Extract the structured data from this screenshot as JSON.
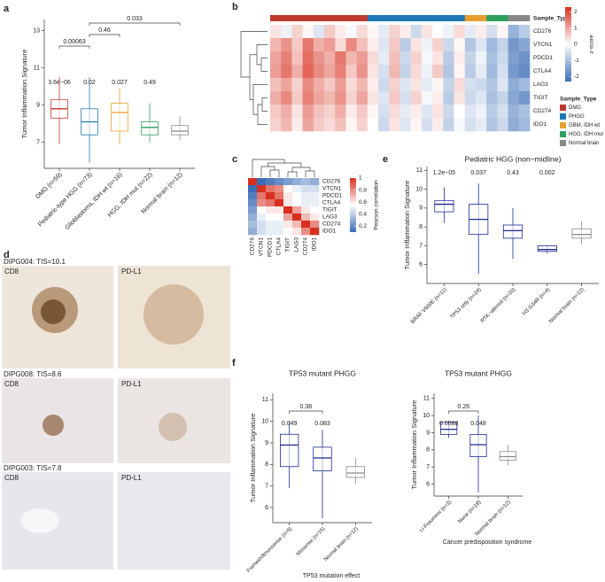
{
  "panel_labels": [
    "a",
    "b",
    "c",
    "d",
    "e",
    "f"
  ],
  "images": [
    {
      "title": "DIPG004: TIS=10.1",
      "stains": [
        "CD8",
        "PD-L1"
      ]
    },
    {
      "title": "DIPG008: TIS=8.6",
      "stains": [
        "CD8",
        "PD-L1"
      ]
    },
    {
      "title": "DIPG003: TIS=7.8",
      "stains": [
        "CD8",
        "PD-L1"
      ]
    }
  ],
  "chart_data": [
    {
      "type": "box",
      "y_label": "Tumor Inflammation Signature",
      "categories": [
        "DMG (n=59)",
        "Pediatric-type HGG (n=73)",
        "Glioblastoma, IDH wt (n=16)",
        "HGG, IDH mut (n=22)",
        "Normal brain (n=12)"
      ],
      "colors": [
        "#c0392b",
        "#1f77b4",
        "#e69f2e",
        "#2e9e5b",
        "#888888"
      ],
      "q1": [
        8.3,
        7.4,
        7.6,
        7.4,
        7.4
      ],
      "median": [
        8.8,
        8.1,
        8.6,
        7.8,
        7.6
      ],
      "q3": [
        9.3,
        8.8,
        9.1,
        8.1,
        7.9
      ],
      "whisker_low": [
        6.9,
        5.9,
        6.9,
        7.0,
        7.1
      ],
      "whisker_high": [
        10.5,
        10.5,
        9.9,
        9.1,
        8.4
      ],
      "annotations": [
        "3.6e−06",
        "0.02",
        "0.027",
        "0.49",
        null
      ],
      "comparisons": [
        {
          "label": "0.00063",
          "between": [
            "DMG (n=59)",
            "Pediatric-type HGG (n=73)"
          ]
        },
        {
          "label": "0.46",
          "between": [
            "Pediatric-type HGG (n=73)",
            "Glioblastoma, IDH wt (n=16)"
          ]
        },
        {
          "label": "0.033",
          "between": [
            "Pediatric-type HGG (n=73)",
            "Normal brain (n=12)"
          ]
        }
      ],
      "ylim": [
        5.6,
        13.6
      ],
      "yticks": [
        7,
        9,
        11,
        13
      ]
    },
    {
      "type": "heatmap",
      "rows": [
        "CD276",
        "VTCN1",
        "PDCD1",
        "CTLA4",
        "LAG3",
        "TIGIT",
        "CD274",
        "IDO1"
      ],
      "values": [
        [
          0.3,
          -0.2,
          0.5,
          0.1,
          -0.4,
          0.6,
          0.2,
          -0.1,
          0.4,
          0.1,
          -0.3,
          0.5,
          0.2,
          -0.6,
          0.3,
          0.0,
          -0.2,
          0.4,
          -0.3,
          0.2,
          -0.5,
          0.1,
          -1.2,
          -0.8
        ],
        [
          0.8,
          1.2,
          0.6,
          1.5,
          0.9,
          1.1,
          0.4,
          1.3,
          0.7,
          0.2,
          -0.4,
          0.6,
          -0.8,
          0.3,
          -0.2,
          0.5,
          -0.6,
          0.1,
          -0.9,
          -0.4,
          -1.1,
          -0.7,
          -1.6,
          -1.4
        ],
        [
          1.0,
          1.4,
          0.7,
          1.6,
          1.2,
          0.9,
          1.5,
          0.8,
          1.1,
          0.4,
          -0.3,
          0.7,
          -0.6,
          0.5,
          -0.1,
          0.3,
          -0.8,
          0.2,
          -0.7,
          -0.2,
          -1.0,
          -0.6,
          -1.5,
          -1.7
        ],
        [
          1.1,
          1.5,
          0.9,
          1.7,
          1.3,
          1.0,
          1.4,
          0.6,
          1.2,
          0.3,
          -0.5,
          0.8,
          -0.7,
          0.4,
          -0.2,
          0.6,
          -0.9,
          0.1,
          -0.8,
          -0.3,
          -1.1,
          -0.5,
          -1.6,
          -1.8
        ],
        [
          0.7,
          1.0,
          0.5,
          1.3,
          0.9,
          0.6,
          1.1,
          0.4,
          0.8,
          0.2,
          -0.6,
          0.5,
          -0.4,
          0.3,
          -0.3,
          0.1,
          -0.7,
          0.4,
          -0.5,
          -0.6,
          -0.9,
          -0.4,
          -1.3,
          -1.1
        ],
        [
          0.9,
          1.3,
          0.6,
          1.4,
          1.0,
          0.8,
          1.2,
          0.5,
          1.0,
          0.3,
          -0.4,
          0.6,
          -0.5,
          0.5,
          -0.1,
          0.2,
          -0.8,
          0.3,
          -0.6,
          -0.4,
          -1.0,
          -0.7,
          -1.4,
          -1.6
        ],
        [
          0.6,
          0.9,
          0.3,
          1.1,
          0.7,
          0.5,
          0.9,
          0.2,
          0.6,
          0.1,
          -0.5,
          0.4,
          -0.3,
          0.2,
          -0.4,
          0.3,
          -0.6,
          0.0,
          -0.4,
          -0.2,
          -0.8,
          -0.5,
          -1.2,
          -1.0
        ],
        [
          0.5,
          0.8,
          0.2,
          1.0,
          0.6,
          0.4,
          0.7,
          0.1,
          0.5,
          0.0,
          -0.6,
          0.3,
          -0.4,
          0.1,
          -0.5,
          0.2,
          -0.7,
          -0.1,
          -0.5,
          -0.3,
          -0.9,
          -0.6,
          -1.3,
          -1.1
        ]
      ],
      "column_groups": [
        "DMG",
        "DMG",
        "DMG",
        "DMG",
        "DMG",
        "DMG",
        "DMG",
        "DMG",
        "DMG",
        "PHGG",
        "PHGG",
        "PHGG",
        "PHGG",
        "PHGG",
        "PHGG",
        "PHGG",
        "PHGG",
        "PHGG",
        "GBM, IDH wt",
        "GBM, IDH wt",
        "HGG, IDH mut",
        "HGG, IDH mut",
        "Normal brain",
        "Normal brain"
      ],
      "groups": [
        {
          "name": "DMG",
          "color": "#c0392b"
        },
        {
          "name": "PHGG",
          "color": "#1f77b4"
        },
        {
          "name": "GBM, IDH wt",
          "color": "#e69f2e"
        },
        {
          "name": "HGG, IDH mut",
          "color": "#2e9e5b"
        },
        {
          "name": "Normal brain",
          "color": "#888888"
        }
      ],
      "annotation_label": "Sample_Type",
      "legend_title": "Sample_Type",
      "colorbar_title": "z-score",
      "colors": [
        "#3a6db5",
        "#ffffff",
        "#d7301f"
      ],
      "clim": [
        -2.3,
        2.3
      ],
      "cticks": [
        -2,
        -1,
        0,
        1,
        2
      ]
    },
    {
      "type": "heatmap",
      "rows": [
        "CD276",
        "VTCN1",
        "PDCD1",
        "CTLA4",
        "TIGIT",
        "LAG3",
        "CD274",
        "IDO1"
      ],
      "columns": [
        "CD276",
        "VTCN1",
        "PDCD1",
        "CTLA4",
        "TIGIT",
        "LAG3",
        "CD274",
        "IDO1"
      ],
      "values": [
        [
          1,
          0.1,
          0.15,
          0.2,
          0.25,
          0.3,
          0.35,
          0.3
        ],
        [
          0.1,
          1,
          0.85,
          0.8,
          0.55,
          0.5,
          0.45,
          0.45
        ],
        [
          0.15,
          0.85,
          1,
          0.85,
          0.6,
          0.55,
          0.5,
          0.5
        ],
        [
          0.2,
          0.8,
          0.85,
          1,
          0.6,
          0.55,
          0.5,
          0.5
        ],
        [
          0.25,
          0.55,
          0.6,
          0.6,
          1,
          0.75,
          0.6,
          0.55
        ],
        [
          0.3,
          0.5,
          0.55,
          0.55,
          0.75,
          1,
          0.7,
          0.6
        ],
        [
          0.35,
          0.45,
          0.5,
          0.5,
          0.6,
          0.7,
          1,
          0.8
        ],
        [
          0.3,
          0.45,
          0.5,
          0.5,
          0.55,
          0.6,
          0.8,
          1
        ]
      ],
      "colorbar_title": "Pearson correlation",
      "colors": [
        "#3a6db5",
        "#ffffff",
        "#d7301f"
      ],
      "clim": [
        0.1,
        1
      ],
      "cticks": [
        0.2,
        0.4,
        0.6,
        0.8,
        1
      ]
    },
    {
      "type": "box",
      "title": "Pediatric HGG (non−midline)",
      "y_label": "Tumor Inflammation Signature",
      "categories": [
        "BRAF V600E (n=11)",
        "TP53 only (n=24)",
        "RTK−altered (n=20)",
        "H3 G34R (n=4)",
        "Normal brain (n=12)"
      ],
      "colors": [
        "#1f2b8f",
        "#1f2b8f",
        "#1f2b8f",
        "#1f2b8f",
        "#888888"
      ],
      "q1": [
        8.8,
        7.6,
        7.4,
        6.7,
        7.4
      ],
      "median": [
        9.2,
        8.4,
        7.8,
        6.8,
        7.6
      ],
      "q3": [
        9.4,
        9.2,
        8.1,
        7.0,
        7.9
      ],
      "whisker_low": [
        8.2,
        5.5,
        6.3,
        6.6,
        7.1
      ],
      "whisker_high": [
        10.1,
        10.3,
        9.0,
        7.0,
        8.3
      ],
      "annotations": [
        "1.2e−05",
        "0.037",
        "0.43",
        "0.002",
        null
      ],
      "ylim": [
        5,
        11.2
      ],
      "yticks": [
        6,
        7,
        8,
        9,
        10,
        11
      ]
    },
    {
      "type": "box",
      "title": "TP53 mutant PHGG",
      "y_label": "Tumor Inflammation Signature",
      "x_label": "TP53 mutation effect",
      "categories": [
        "Frameshift/nonsense (n=9)",
        "Missense (n=15)",
        "Normal brain (n=12)"
      ],
      "colors": [
        "#1f2b8f",
        "#1f2b8f",
        "#888888"
      ],
      "q1": [
        7.9,
        7.7,
        7.4
      ],
      "median": [
        8.9,
        8.3,
        7.6
      ],
      "q3": [
        9.4,
        8.8,
        7.9
      ],
      "whisker_low": [
        6.9,
        5.5,
        7.1
      ],
      "whisker_high": [
        10.0,
        9.6,
        8.3
      ],
      "annotations": [
        "0.049",
        "0.083",
        null
      ],
      "comparisons": [
        {
          "label": "0.38",
          "between": [
            "Frameshift/nonsense (n=9)",
            "Missense (n=15)"
          ]
        }
      ],
      "ylim": [
        5.3,
        11.3
      ],
      "yticks": [
        6,
        7,
        8,
        9,
        10,
        11
      ]
    },
    {
      "type": "box",
      "title": "TP53 mutant PHGG",
      "y_label": "Tumor Inflammation Signature",
      "x_label": "Cancer predisposition syndrome",
      "categories": [
        "Li-Fraumeni (n=3)",
        "None (n=18)",
        "Normal brain (n=12)"
      ],
      "colors": [
        "#1f2b8f",
        "#1f2b8f",
        "#888888"
      ],
      "q1": [
        8.9,
        7.6,
        7.4
      ],
      "median": [
        9.2,
        8.3,
        7.6
      ],
      "q3": [
        9.6,
        8.9,
        7.9
      ],
      "whisker_low": [
        8.7,
        5.5,
        7.1
      ],
      "whisker_high": [
        9.7,
        10.0,
        8.3
      ],
      "annotations": [
        "0.0088",
        "0.048",
        null
      ],
      "comparisons": [
        {
          "label": "0.26",
          "between": [
            "Li-Fraumeni (n=3)",
            "None (n=18)"
          ]
        }
      ],
      "ylim": [
        5.3,
        11.3
      ],
      "yticks": [
        6,
        7,
        8,
        9,
        10,
        11
      ]
    }
  ]
}
